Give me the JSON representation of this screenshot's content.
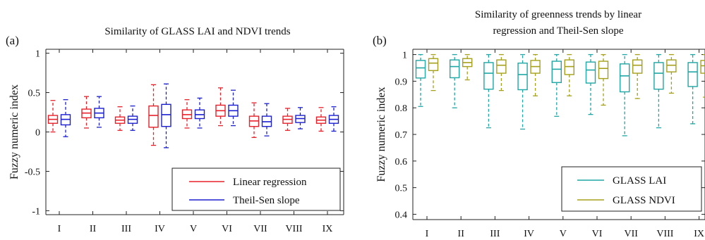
{
  "chart_data": [
    {
      "type": "boxplot",
      "panel_label": "(a)",
      "title": "Similarity of GLASS LAI and NDVI trends",
      "title_lines": [
        "Similarity of GLASS LAI and NDVI trends"
      ],
      "xlabel": "",
      "ylabel": "Fuzzy numeric index",
      "ylim": [
        -1.05,
        1.05
      ],
      "yticks": [
        -1,
        -0.5,
        0,
        0.5,
        1
      ],
      "ytick_labels": [
        "-1",
        "-0.5",
        "0",
        "0.5",
        "1"
      ],
      "categories": [
        "I",
        "II",
        "III",
        "IV",
        "V",
        "VI",
        "VII",
        "VIII",
        "IX"
      ],
      "legend": {
        "position": "bottom-right"
      },
      "series": [
        {
          "name": "Linear regression",
          "color": "#e8202a",
          "boxes": [
            {
              "min": 0.0,
              "q1": 0.11,
              "median": 0.16,
              "q3": 0.21,
              "max": 0.4
            },
            {
              "min": 0.05,
              "q1": 0.18,
              "median": 0.24,
              "q3": 0.29,
              "max": 0.45
            },
            {
              "min": 0.02,
              "q1": 0.11,
              "median": 0.15,
              "q3": 0.19,
              "max": 0.32
            },
            {
              "min": -0.17,
              "q1": 0.06,
              "median": 0.21,
              "q3": 0.33,
              "max": 0.6
            },
            {
              "min": 0.05,
              "q1": 0.17,
              "median": 0.22,
              "q3": 0.28,
              "max": 0.41
            },
            {
              "min": 0.08,
              "q1": 0.2,
              "median": 0.27,
              "q3": 0.34,
              "max": 0.56
            },
            {
              "min": -0.07,
              "q1": 0.07,
              "median": 0.14,
              "q3": 0.2,
              "max": 0.37
            },
            {
              "min": 0.02,
              "q1": 0.11,
              "median": 0.16,
              "q3": 0.2,
              "max": 0.3
            },
            {
              "min": 0.01,
              "q1": 0.11,
              "median": 0.15,
              "q3": 0.19,
              "max": 0.31
            }
          ]
        },
        {
          "name": "Theil-Sen slope",
          "color": "#1b1fd0",
          "boxes": [
            {
              "min": -0.06,
              "q1": 0.09,
              "median": 0.16,
              "q3": 0.22,
              "max": 0.41
            },
            {
              "min": 0.06,
              "q1": 0.18,
              "median": 0.24,
              "q3": 0.3,
              "max": 0.45
            },
            {
              "min": 0.02,
              "q1": 0.11,
              "median": 0.16,
              "q3": 0.2,
              "max": 0.33
            },
            {
              "min": -0.2,
              "q1": 0.07,
              "median": 0.22,
              "q3": 0.35,
              "max": 0.61
            },
            {
              "min": 0.05,
              "q1": 0.17,
              "median": 0.22,
              "q3": 0.28,
              "max": 0.43
            },
            {
              "min": 0.08,
              "q1": 0.2,
              "median": 0.27,
              "q3": 0.34,
              "max": 0.53
            },
            {
              "min": -0.05,
              "q1": 0.07,
              "median": 0.13,
              "q3": 0.2,
              "max": 0.36
            },
            {
              "min": 0.04,
              "q1": 0.12,
              "median": 0.17,
              "q3": 0.21,
              "max": 0.31
            },
            {
              "min": 0.01,
              "q1": 0.11,
              "median": 0.16,
              "q3": 0.21,
              "max": 0.32
            }
          ]
        }
      ]
    },
    {
      "type": "boxplot",
      "panel_label": "(b)",
      "title": "Similarity of greenness trends by linear regression and Theil-Sen slope",
      "title_lines": [
        "Similarity of greenness trends by linear",
        "regression and Theil-Sen slope"
      ],
      "xlabel": "",
      "ylabel": "Fuzzy numeric index",
      "ylim": [
        0.38,
        1.02
      ],
      "yticks": [
        0.4,
        0.5,
        0.6,
        0.7,
        0.8,
        0.9,
        1
      ],
      "ytick_labels": [
        "0.4",
        "0.5",
        "0.6",
        "0.7",
        "0.8",
        "0.9",
        "1"
      ],
      "categories": [
        "I",
        "II",
        "III",
        "IV",
        "V",
        "VI",
        "VII",
        "VIII",
        "IX"
      ],
      "legend": {
        "position": "bottom-right"
      },
      "series": [
        {
          "name": "GLASS LAI",
          "color": "#1fa7a5",
          "boxes": [
            {
              "min": 0.805,
              "q1": 0.912,
              "median": 0.95,
              "q3": 0.978,
              "max": 1.0
            },
            {
              "min": 0.8,
              "q1": 0.913,
              "median": 0.955,
              "q3": 0.98,
              "max": 1.0
            },
            {
              "min": 0.725,
              "q1": 0.87,
              "median": 0.93,
              "q3": 0.97,
              "max": 1.0
            },
            {
              "min": 0.72,
              "q1": 0.868,
              "median": 0.925,
              "q3": 0.968,
              "max": 1.0
            },
            {
              "min": 0.768,
              "q1": 0.895,
              "median": 0.945,
              "q3": 0.975,
              "max": 1.0
            },
            {
              "min": 0.775,
              "q1": 0.893,
              "median": 0.942,
              "q3": 0.972,
              "max": 1.0
            },
            {
              "min": 0.695,
              "q1": 0.86,
              "median": 0.92,
              "q3": 0.965,
              "max": 1.0
            },
            {
              "min": 0.725,
              "q1": 0.87,
              "median": 0.93,
              "q3": 0.97,
              "max": 1.0
            },
            {
              "min": 0.74,
              "q1": 0.88,
              "median": 0.935,
              "q3": 0.97,
              "max": 1.0
            }
          ]
        },
        {
          "name": "GLASS NDVI",
          "color": "#a5a01c",
          "boxes": [
            {
              "min": 0.865,
              "q1": 0.94,
              "median": 0.968,
              "q3": 0.985,
              "max": 1.0
            },
            {
              "min": 0.905,
              "q1": 0.955,
              "median": 0.97,
              "q3": 0.985,
              "max": 1.0
            },
            {
              "min": 0.865,
              "q1": 0.93,
              "median": 0.96,
              "q3": 0.98,
              "max": 1.0
            },
            {
              "min": 0.845,
              "q1": 0.93,
              "median": 0.955,
              "q3": 0.978,
              "max": 1.0
            },
            {
              "min": 0.845,
              "q1": 0.925,
              "median": 0.955,
              "q3": 0.98,
              "max": 1.0
            },
            {
              "min": 0.81,
              "q1": 0.91,
              "median": 0.948,
              "q3": 0.975,
              "max": 1.0
            },
            {
              "min": 0.835,
              "q1": 0.93,
              "median": 0.96,
              "q3": 0.98,
              "max": 1.0
            },
            {
              "min": 0.855,
              "q1": 0.935,
              "median": 0.96,
              "q3": 0.98,
              "max": 1.0
            },
            {
              "min": 0.84,
              "q1": 0.93,
              "median": 0.958,
              "q3": 0.978,
              "max": 1.0
            }
          ]
        }
      ]
    }
  ]
}
